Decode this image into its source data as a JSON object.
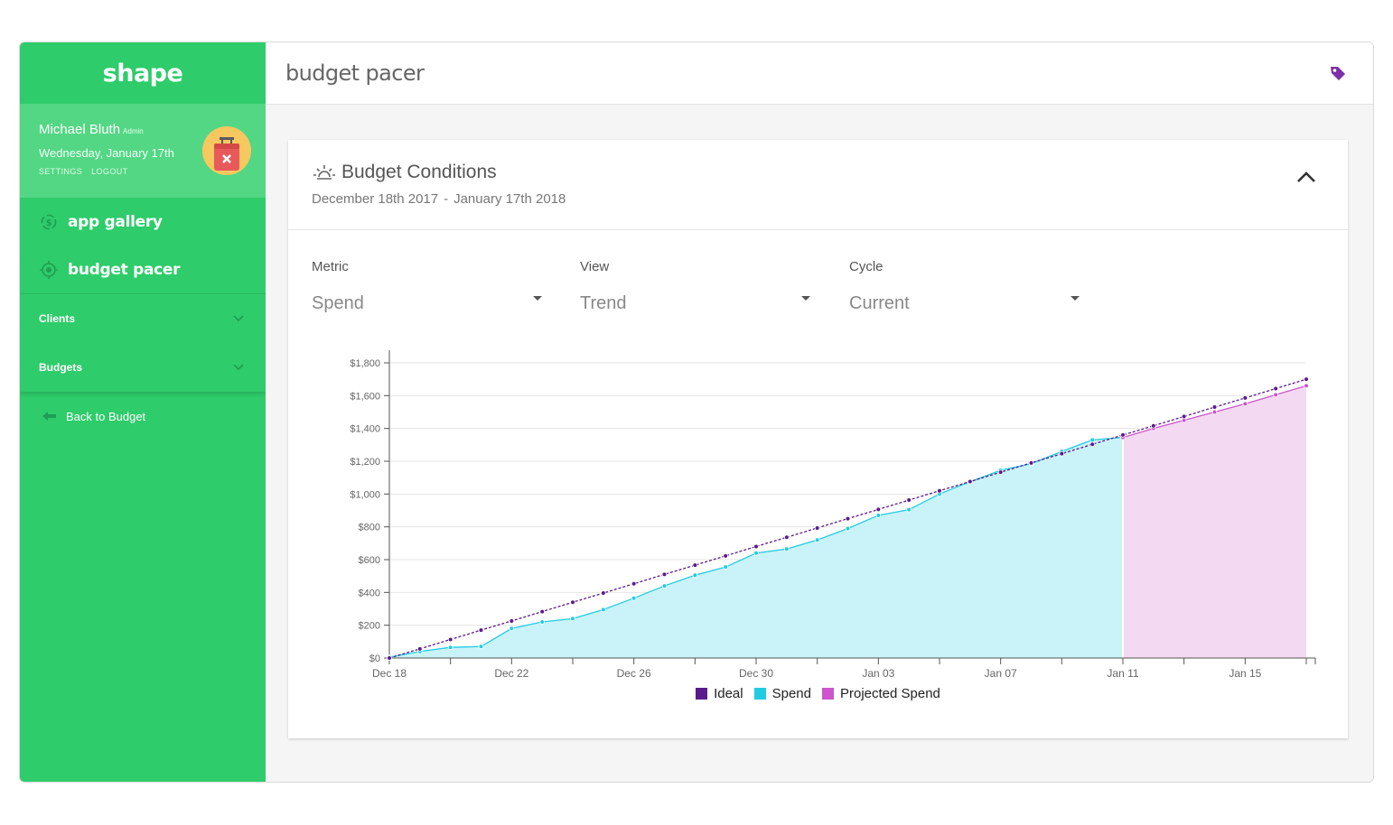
{
  "app": {
    "brand": "shape",
    "page_title": "budget pacer"
  },
  "user": {
    "name": "Michael Bluth",
    "role": "Admin",
    "date": "Wednesday, January 17th",
    "settings_label": "SETTINGS",
    "logout_label": "LOGOUT"
  },
  "sidebar": {
    "nav": [
      {
        "label": "app gallery",
        "icon": "gallery-icon"
      },
      {
        "label": "budget pacer",
        "icon": "target-icon"
      }
    ],
    "sections": [
      {
        "label": "Clients"
      },
      {
        "label": "Budgets"
      }
    ],
    "back_label": "Back to Budget"
  },
  "card": {
    "title": "Budget Conditions",
    "date_start": "December 18th 2017",
    "date_sep": "-",
    "date_end": "January 17th 2018",
    "icon": "sunrise-icon"
  },
  "filters": [
    {
      "label": "Metric",
      "value": "Spend"
    },
    {
      "label": "View",
      "value": "Trend"
    },
    {
      "label": "Cycle",
      "value": "Current"
    }
  ],
  "colors": {
    "sidebar": "#2ecc6a",
    "ideal": "#5b1a8c",
    "spend": "#22cce0",
    "spend_fill": "#c9f3f8",
    "projected": "#cc55cc",
    "projected_fill": "#f3d9f1",
    "tag_icon": "#7b2fa8"
  },
  "chart_data": {
    "type": "line",
    "ylim": [
      0,
      1800
    ],
    "y_ticks": [
      "$0",
      "$200",
      "$400",
      "$600",
      "$800",
      "$1,000",
      "$1,200",
      "$1,400",
      "$1,600",
      "$1,800"
    ],
    "x_labels": [
      "Dec 18",
      "Dec 22",
      "Dec 26",
      "Dec 30",
      "Jan 03",
      "Jan 07",
      "Jan 11",
      "Jan 15"
    ],
    "x_start": "2017-12-18",
    "x_end": "2018-01-17",
    "legend": [
      "Ideal",
      "Spend",
      "Projected Spend"
    ],
    "series": [
      {
        "name": "Ideal",
        "start": "2017-12-18",
        "values": [
          0,
          56,
          113,
          170,
          226,
          283,
          340,
          396,
          453,
          510,
          566,
          623,
          680,
          736,
          793,
          850,
          906,
          963,
          1020,
          1076,
          1133,
          1190,
          1246,
          1303,
          1360,
          1416,
          1473,
          1530,
          1586,
          1643,
          1700
        ]
      },
      {
        "name": "Spend",
        "start": "2017-12-18",
        "values": [
          5,
          40,
          65,
          70,
          180,
          220,
          240,
          295,
          365,
          440,
          505,
          555,
          640,
          665,
          720,
          790,
          870,
          905,
          1000,
          1075,
          1145,
          1185,
          1260,
          1330,
          1345
        ]
      },
      {
        "name": "Projected Spend",
        "start": "2018-01-11",
        "values": [
          1345,
          1400,
          1450,
          1500,
          1550,
          1605,
          1660
        ]
      }
    ]
  }
}
